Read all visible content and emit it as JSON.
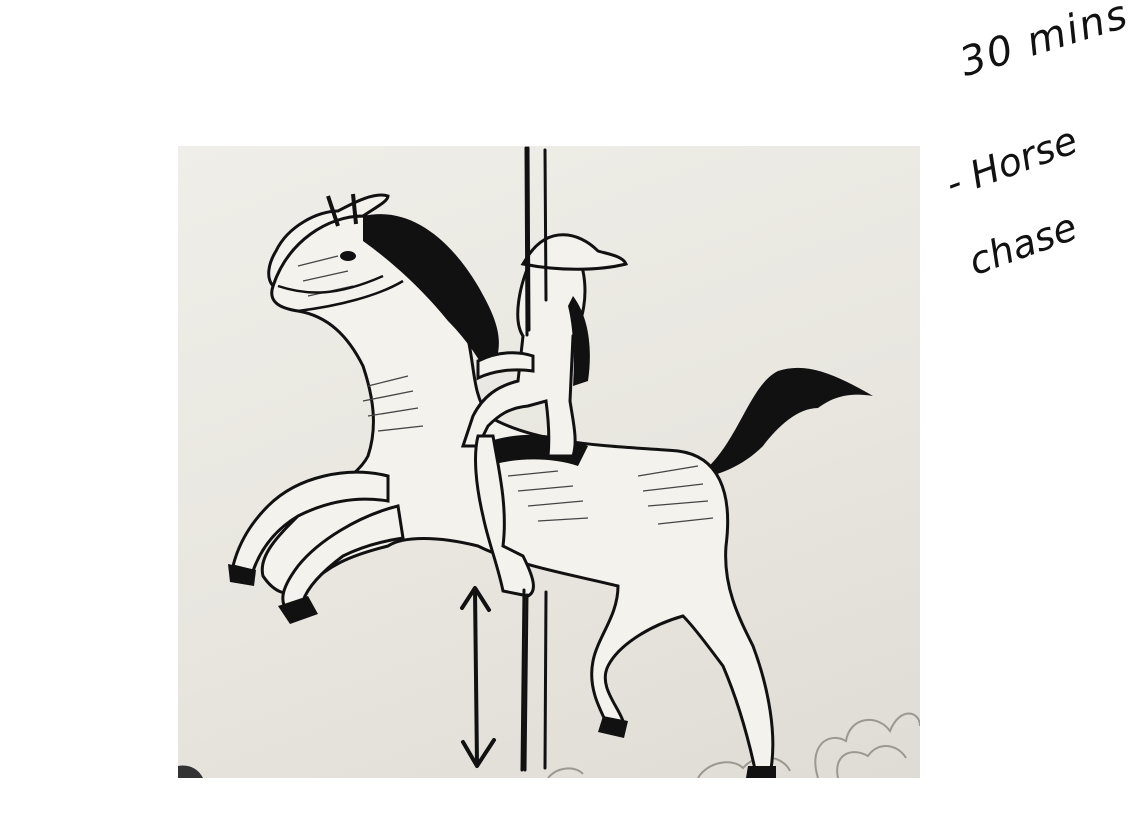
{
  "annotations": {
    "time": "30 mins",
    "topic_line1": "- Horse",
    "topic_line2": "chase"
  },
  "colors": {
    "ink": "#111111",
    "paper": "#ffffff",
    "photo_background": "#e9e7e0"
  }
}
